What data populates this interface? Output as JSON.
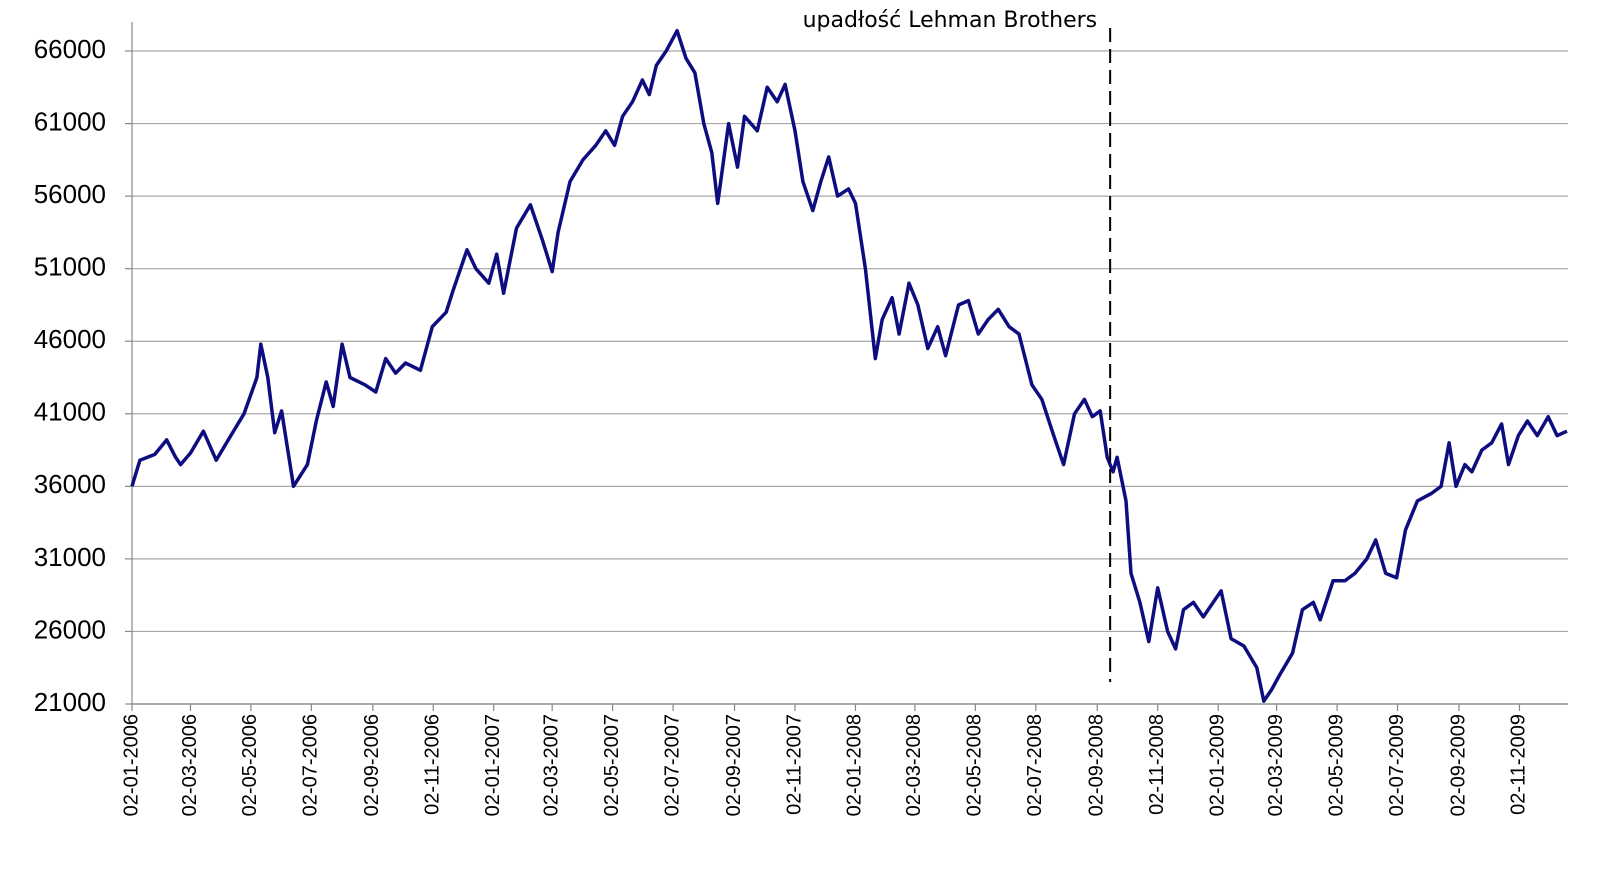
{
  "chart_data": {
    "type": "line",
    "annotation": {
      "text": "upadłość Lehman Brothers",
      "x": "2008-09-15"
    },
    "x": [
      "2006-01-02",
      "2006-01-10",
      "2006-01-25",
      "2006-02-06",
      "2006-02-15",
      "2006-02-20",
      "2006-03-02",
      "2006-03-15",
      "2006-03-28",
      "2006-04-10",
      "2006-04-25",
      "2006-05-08",
      "2006-05-12",
      "2006-05-19",
      "2006-05-26",
      "2006-06-02",
      "2006-06-14",
      "2006-06-28",
      "2006-07-07",
      "2006-07-17",
      "2006-07-24",
      "2006-08-02",
      "2006-08-10",
      "2006-08-25",
      "2006-09-05",
      "2006-09-15",
      "2006-09-25",
      "2006-10-05",
      "2006-10-20",
      "2006-11-01",
      "2006-11-15",
      "2006-11-22",
      "2006-12-06",
      "2006-12-15",
      "2006-12-28",
      "2007-01-05",
      "2007-01-12",
      "2007-01-25",
      "2007-02-08",
      "2007-02-20",
      "2007-03-02",
      "2007-03-08",
      "2007-03-20",
      "2007-04-02",
      "2007-04-15",
      "2007-04-25",
      "2007-05-04",
      "2007-05-12",
      "2007-05-22",
      "2007-06-01",
      "2007-06-08",
      "2007-06-15",
      "2007-06-25",
      "2007-07-06",
      "2007-07-15",
      "2007-07-24",
      "2007-08-02",
      "2007-08-10",
      "2007-08-16",
      "2007-08-27",
      "2007-09-05",
      "2007-09-12",
      "2007-09-25",
      "2007-10-05",
      "2007-10-15",
      "2007-10-23",
      "2007-11-02",
      "2007-11-10",
      "2007-11-20",
      "2007-11-28",
      "2007-12-06",
      "2007-12-15",
      "2007-12-26",
      "2008-01-02",
      "2008-01-12",
      "2008-01-22",
      "2008-01-29",
      "2008-02-08",
      "2008-02-15",
      "2008-02-25",
      "2008-03-05",
      "2008-03-15",
      "2008-03-25",
      "2008-04-02",
      "2008-04-15",
      "2008-04-25",
      "2008-05-05",
      "2008-05-15",
      "2008-05-25",
      "2008-06-05",
      "2008-06-15",
      "2008-06-28",
      "2008-07-08",
      "2008-07-20",
      "2008-07-30",
      "2008-08-10",
      "2008-08-20",
      "2008-08-28",
      "2008-09-05",
      "2008-09-12",
      "2008-09-18",
      "2008-09-22",
      "2008-10-01",
      "2008-10-06",
      "2008-10-15",
      "2008-10-24",
      "2008-11-02",
      "2008-11-12",
      "2008-11-20",
      "2008-11-28",
      "2008-12-08",
      "2008-12-18",
      "2009-01-05",
      "2009-01-15",
      "2009-01-28",
      "2009-02-10",
      "2009-02-17",
      "2009-02-25",
      "2009-03-05",
      "2009-03-18",
      "2009-03-28",
      "2009-04-08",
      "2009-04-15",
      "2009-04-28",
      "2009-05-10",
      "2009-05-20",
      "2009-06-01",
      "2009-06-10",
      "2009-06-20",
      "2009-07-01",
      "2009-07-10",
      "2009-07-22",
      "2009-08-05",
      "2009-08-15",
      "2009-08-23",
      "2009-08-30",
      "2009-09-08",
      "2009-09-15",
      "2009-09-25",
      "2009-10-05",
      "2009-10-15",
      "2009-10-22",
      "2009-11-01",
      "2009-11-10",
      "2009-11-20",
      "2009-12-01",
      "2009-12-10",
      "2009-12-20"
    ],
    "values": [
      36000,
      37800,
      38200,
      39200,
      38000,
      37500,
      38300,
      39800,
      37800,
      39300,
      41000,
      43500,
      45800,
      43500,
      39700,
      41200,
      36000,
      37500,
      40500,
      43200,
      41500,
      45800,
      43500,
      43000,
      42500,
      44800,
      43800,
      44500,
      44000,
      47000,
      48000,
      49500,
      52300,
      51000,
      50000,
      52000,
      49300,
      53800,
      55400,
      53000,
      50800,
      53500,
      57000,
      58500,
      59500,
      60500,
      59500,
      61500,
      62500,
      64000,
      63000,
      65000,
      66000,
      67400,
      65500,
      64500,
      61000,
      59000,
      55500,
      61000,
      58000,
      61500,
      60500,
      63500,
      62500,
      63700,
      60500,
      57000,
      55000,
      57000,
      58700,
      56000,
      56500,
      55500,
      51000,
      44800,
      47500,
      49000,
      46500,
      50000,
      48500,
      45500,
      47000,
      45000,
      48500,
      48800,
      46500,
      47500,
      48200,
      47000,
      46500,
      43000,
      42000,
      39500,
      37500,
      41000,
      42000,
      40800,
      41200,
      38000,
      37000,
      38000,
      35000,
      30000,
      28000,
      25300,
      29000,
      26000,
      24800,
      27500,
      28000,
      27000,
      28800,
      25500,
      25000,
      23500,
      21200,
      22000,
      23000,
      24500,
      27500,
      28000,
      26800,
      29500,
      29500,
      30000,
      31000,
      32300,
      30000,
      29700,
      33000,
      35000,
      35500,
      36000,
      39000,
      36000,
      37500,
      37000,
      38500,
      39000,
      40300,
      37500,
      39500,
      40500,
      39500,
      40800,
      39500,
      39800
    ],
    "color": "#0d0d80",
    "xlim": [
      "2006-01-02",
      "2009-12-21"
    ],
    "xticks": [
      {
        "value": "2006-01-02",
        "label": "02-01-2006"
      },
      {
        "value": "2006-03-02",
        "label": "02-03-2006"
      },
      {
        "value": "2006-05-02",
        "label": "02-05-2006"
      },
      {
        "value": "2006-07-02",
        "label": "02-07-2006"
      },
      {
        "value": "2006-09-02",
        "label": "02-09-2006"
      },
      {
        "value": "2006-11-02",
        "label": "02-11-2006"
      },
      {
        "value": "2007-01-02",
        "label": "02-01-2007"
      },
      {
        "value": "2007-03-02",
        "label": "02-03-2007"
      },
      {
        "value": "2007-05-02",
        "label": "02-05-2007"
      },
      {
        "value": "2007-07-02",
        "label": "02-07-2007"
      },
      {
        "value": "2007-09-02",
        "label": "02-09-2007"
      },
      {
        "value": "2007-11-02",
        "label": "02-11-2007"
      },
      {
        "value": "2008-01-02",
        "label": "02-01-2008"
      },
      {
        "value": "2008-03-02",
        "label": "02-03-2008"
      },
      {
        "value": "2008-05-02",
        "label": "02-05-2008"
      },
      {
        "value": "2008-07-02",
        "label": "02-07-2008"
      },
      {
        "value": "2008-09-02",
        "label": "02-09-2008"
      },
      {
        "value": "2008-11-02",
        "label": "02-11-2008"
      },
      {
        "value": "2009-01-02",
        "label": "02-01-2009"
      },
      {
        "value": "2009-03-02",
        "label": "02-03-2009"
      },
      {
        "value": "2009-05-02",
        "label": "02-05-2009"
      },
      {
        "value": "2009-07-02",
        "label": "02-07-2009"
      },
      {
        "value": "2009-09-02",
        "label": "02-09-2009"
      },
      {
        "value": "2009-11-02",
        "label": "02-11-2009"
      }
    ],
    "ylim": [
      21000,
      68000
    ],
    "yticks": [
      21000,
      26000,
      31000,
      36000,
      41000,
      46000,
      51000,
      56000,
      61000,
      66000
    ],
    "grid": true
  }
}
